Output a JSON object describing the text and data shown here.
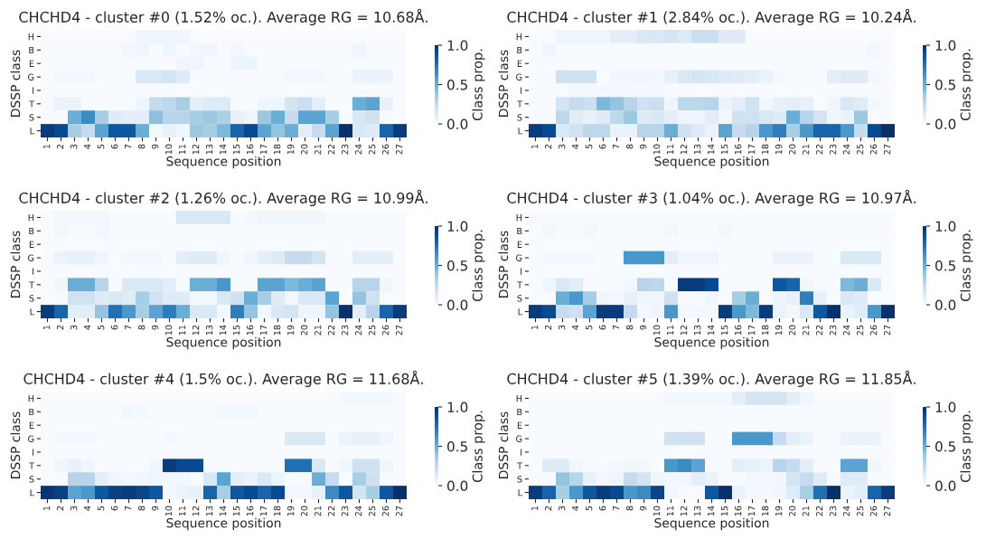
{
  "chart_data": [
    {
      "type": "heatmap",
      "title": "CHCHD4 - cluster #0 (1.52% oc.). Average RG = 10.68Å.",
      "xlabel": "Sequence position",
      "ylabel": "DSSP class",
      "clabel": "Class prop.",
      "categories": [
        "1",
        "2",
        "3",
        "4",
        "5",
        "6",
        "7",
        "8",
        "9",
        "10",
        "11",
        "12",
        "13",
        "14",
        "15",
        "16",
        "17",
        "18",
        "19",
        "20",
        "21",
        "22",
        "23",
        "24",
        "25",
        "26",
        "27"
      ],
      "y_categories": [
        "H",
        "B",
        "E",
        "G",
        "I",
        "T",
        "S",
        "L"
      ],
      "clim": [
        0,
        1
      ],
      "cticks": [
        {
          "value": 0,
          "label": "0.0"
        },
        {
          "value": 0.5,
          "label": "0.5"
        },
        {
          "value": 1,
          "label": "1.0"
        }
      ],
      "cells": [
        [
          0,
          0,
          0,
          0,
          0,
          0,
          0,
          0.05,
          0.05,
          0.05,
          0.05,
          0,
          0,
          0,
          0,
          0,
          0,
          0,
          0,
          0,
          0,
          0,
          0,
          0,
          0,
          0,
          0
        ],
        [
          0,
          0,
          0,
          0,
          0,
          0,
          0.03,
          0.05,
          0,
          0.05,
          0,
          0.03,
          0.05,
          0,
          0.03,
          0,
          0,
          0,
          0,
          0,
          0,
          0,
          0,
          0.05,
          0,
          0,
          0
        ],
        [
          0,
          0,
          0,
          0,
          0,
          0,
          0,
          0,
          0,
          0,
          0.05,
          0.05,
          0,
          0,
          0.06,
          0.06,
          0,
          0,
          0,
          0,
          0,
          0,
          0,
          0,
          0,
          0,
          0
        ],
        [
          0,
          0.02,
          0.02,
          0.02,
          0,
          0,
          0,
          0.15,
          0.15,
          0.18,
          0.12,
          0,
          0,
          0,
          0,
          0,
          0,
          0,
          0.03,
          0.03,
          0.03,
          0,
          0,
          0.07,
          0.07,
          0.07,
          0
        ],
        [
          0,
          0,
          0,
          0,
          0,
          0,
          0,
          0,
          0,
          0,
          0,
          0,
          0,
          0,
          0,
          0,
          0,
          0,
          0,
          0,
          0,
          0,
          0,
          0,
          0,
          0,
          0
        ],
        [
          0,
          0.07,
          0.07,
          0,
          0,
          0,
          0,
          0.05,
          0.25,
          0.28,
          0.35,
          0.1,
          0.13,
          0.13,
          0,
          0,
          0.05,
          0.05,
          0.18,
          0.22,
          0.1,
          0,
          0,
          0.5,
          0.55,
          0.08,
          0
        ],
        [
          0,
          0,
          0.5,
          0.65,
          0.35,
          0.12,
          0.1,
          0.1,
          0.42,
          0.3,
          0.3,
          0.35,
          0.38,
          0.33,
          0.08,
          0.05,
          0.38,
          0.5,
          0.25,
          0.55,
          0.55,
          0.35,
          0,
          0.15,
          0.2,
          0,
          0
        ],
        [
          0.95,
          0.9,
          0.35,
          0.25,
          0.55,
          0.85,
          0.85,
          0.5,
          0.03,
          0.08,
          0.05,
          0.38,
          0.35,
          0.45,
          0.8,
          0.9,
          0.55,
          0.4,
          0.5,
          0.1,
          0.25,
          0.55,
          1.0,
          0.15,
          0.12,
          0.8,
          0.95
        ]
      ]
    },
    {
      "type": "heatmap",
      "title": "CHCHD4 - cluster #1 (2.84% oc.). Average RG = 10.24Å.",
      "xlabel": "Sequence position",
      "ylabel": "DSSP class",
      "clabel": "Class prop.",
      "categories": [
        "1",
        "2",
        "3",
        "4",
        "5",
        "6",
        "7",
        "8",
        "9",
        "10",
        "11",
        "12",
        "13",
        "14",
        "15",
        "16",
        "17",
        "18",
        "19",
        "20",
        "21",
        "22",
        "23",
        "24",
        "25",
        "26",
        "27"
      ],
      "y_categories": [
        "H",
        "B",
        "E",
        "G",
        "I",
        "T",
        "S",
        "L"
      ],
      "clim": [
        0,
        1
      ],
      "cticks": [
        {
          "value": 0,
          "label": "0.0"
        },
        {
          "value": 0.5,
          "label": "0.5"
        },
        {
          "value": 1,
          "label": "1.0"
        }
      ],
      "cells": [
        [
          0,
          0,
          0.05,
          0.05,
          0.05,
          0.05,
          0.1,
          0.1,
          0.15,
          0.15,
          0.18,
          0.13,
          0.22,
          0.22,
          0.12,
          0.12,
          0,
          0,
          0,
          0,
          0,
          0,
          0,
          0,
          0,
          0,
          0
        ],
        [
          0,
          0.05,
          0,
          0,
          0,
          0,
          0,
          0,
          0,
          0,
          0,
          0,
          0,
          0,
          0,
          0,
          0,
          0,
          0,
          0,
          0,
          0,
          0,
          0,
          0,
          0.03,
          0
        ],
        [
          0,
          0,
          0,
          0,
          0,
          0,
          0,
          0,
          0,
          0,
          0,
          0,
          0,
          0,
          0,
          0,
          0,
          0,
          0,
          0,
          0,
          0,
          0,
          0,
          0,
          0,
          0
        ],
        [
          0,
          0,
          0.2,
          0.2,
          0.2,
          0,
          0.04,
          0.04,
          0.05,
          0.03,
          0.08,
          0.15,
          0.17,
          0.15,
          0.13,
          0.12,
          0.1,
          0.07,
          0.02,
          0,
          0,
          0,
          0.1,
          0.12,
          0.12,
          0.03,
          0
        ],
        [
          0,
          0,
          0,
          0.02,
          0.02,
          0.02,
          0.02,
          0.02,
          0.02,
          0.02,
          0,
          0,
          0,
          0,
          0,
          0,
          0,
          0,
          0,
          0,
          0,
          0,
          0,
          0,
          0,
          0,
          0
        ],
        [
          0,
          0,
          0.18,
          0.25,
          0.22,
          0.45,
          0.4,
          0.3,
          0.2,
          0.22,
          0.05,
          0.28,
          0.28,
          0.3,
          0.06,
          0.1,
          0.2,
          0.03,
          0.08,
          0.1,
          0.08,
          0,
          0.05,
          0.15,
          0.12,
          0.03,
          0
        ],
        [
          0,
          0,
          0.28,
          0.12,
          0.08,
          0.12,
          0.28,
          0.38,
          0.12,
          0.15,
          0.1,
          0.05,
          0.05,
          0.1,
          0.03,
          0.2,
          0.2,
          0.15,
          0.12,
          0.5,
          0.3,
          0.18,
          0.04,
          0.07,
          0.38,
          0,
          0
        ],
        [
          0.95,
          0.9,
          0.15,
          0.2,
          0.28,
          0.28,
          0.07,
          0.07,
          0.3,
          0.3,
          0.5,
          0.2,
          0.13,
          0.07,
          0.55,
          0.25,
          0.3,
          0.6,
          0.7,
          0.35,
          0.6,
          0.8,
          0.8,
          0.6,
          0.25,
          0.9,
          1.0
        ]
      ]
    },
    {
      "type": "heatmap",
      "title": "CHCHD4 - cluster #2 (1.26% oc.). Average RG = 10.99Å.",
      "xlabel": "Sequence position",
      "ylabel": "DSSP class",
      "clabel": "Class prop.",
      "categories": [
        "1",
        "2",
        "3",
        "4",
        "5",
        "6",
        "7",
        "8",
        "9",
        "10",
        "11",
        "12",
        "13",
        "14",
        "15",
        "16",
        "17",
        "18",
        "19",
        "20",
        "21",
        "22",
        "23",
        "24",
        "25",
        "26",
        "27"
      ],
      "y_categories": [
        "H",
        "B",
        "E",
        "G",
        "I",
        "T",
        "S",
        "L"
      ],
      "clim": [
        0,
        1
      ],
      "cticks": [
        {
          "value": 0,
          "label": "0.0"
        },
        {
          "value": 0.5,
          "label": "0.5"
        },
        {
          "value": 1,
          "label": "1.0"
        }
      ],
      "cells": [
        [
          0,
          0.03,
          0.03,
          0.03,
          0.03,
          0,
          0,
          0,
          0,
          0,
          0.15,
          0.15,
          0.15,
          0.15,
          0,
          0.02,
          0.04,
          0.04,
          0.04,
          0.04,
          0.04,
          0,
          0,
          0,
          0,
          0,
          0
        ],
        [
          0,
          0.03,
          0,
          0,
          0.03,
          0,
          0,
          0,
          0,
          0,
          0,
          0,
          0,
          0,
          0,
          0,
          0,
          0,
          0,
          0,
          0,
          0,
          0,
          0,
          0,
          0,
          0
        ],
        [
          0,
          0,
          0,
          0,
          0,
          0,
          0,
          0,
          0,
          0,
          0,
          0,
          0,
          0,
          0,
          0,
          0,
          0,
          0,
          0,
          0,
          0,
          0,
          0,
          0,
          0,
          0
        ],
        [
          0,
          0.07,
          0.08,
          0.08,
          0.05,
          0,
          0.02,
          0.03,
          0.03,
          0,
          0.1,
          0.12,
          0.12,
          0.04,
          0,
          0.04,
          0.1,
          0.12,
          0.25,
          0.25,
          0.18,
          0,
          0,
          0.1,
          0.1,
          0.1,
          0
        ],
        [
          0,
          0,
          0,
          0,
          0,
          0,
          0,
          0,
          0,
          0,
          0,
          0,
          0,
          0,
          0,
          0,
          0,
          0,
          0,
          0,
          0,
          0,
          0,
          0,
          0,
          0,
          0
        ],
        [
          0,
          0.04,
          0.5,
          0.5,
          0.3,
          0,
          0.15,
          0.15,
          0.15,
          0.1,
          0,
          0.5,
          0.5,
          0.6,
          0,
          0,
          0.55,
          0.55,
          0.45,
          0.5,
          0.55,
          0,
          0,
          0.3,
          0.3,
          0.04,
          0
        ],
        [
          0,
          0,
          0.2,
          0.2,
          0.12,
          0.15,
          0.12,
          0.35,
          0.2,
          0.12,
          0.12,
          0.02,
          0.03,
          0.15,
          0.2,
          0.5,
          0.35,
          0.12,
          0.03,
          0.15,
          0.15,
          0.55,
          0,
          0.4,
          0.2,
          0,
          0
        ],
        [
          0.95,
          0.8,
          0.1,
          0.1,
          0.4,
          0.75,
          0.6,
          0.35,
          0.55,
          0.7,
          0.5,
          0.15,
          0.15,
          0.02,
          0.7,
          0.4,
          0.02,
          0.15,
          0.18,
          0.05,
          0.05,
          0.4,
          1.0,
          0.1,
          0.3,
          0.8,
          0.95
        ]
      ]
    },
    {
      "type": "heatmap",
      "title": "CHCHD4 - cluster #3 (1.04% oc.). Average RG = 10.97Å.",
      "xlabel": "Sequence position",
      "ylabel": "DSSP class",
      "clabel": "Class prop.",
      "categories": [
        "1",
        "2",
        "3",
        "4",
        "5",
        "6",
        "7",
        "8",
        "9",
        "10",
        "11",
        "12",
        "13",
        "14",
        "15",
        "16",
        "17",
        "18",
        "19",
        "20",
        "21",
        "22",
        "23",
        "24",
        "25",
        "26",
        "27"
      ],
      "y_categories": [
        "H",
        "B",
        "E",
        "G",
        "I",
        "T",
        "S",
        "L"
      ],
      "clim": [
        0,
        1
      ],
      "cticks": [
        {
          "value": 0,
          "label": "0.0"
        },
        {
          "value": 0.5,
          "label": "0.5"
        },
        {
          "value": 1,
          "label": "1.0"
        }
      ],
      "cells": [
        [
          0,
          0,
          0,
          0,
          0,
          0,
          0,
          0,
          0,
          0,
          0,
          0,
          0,
          0,
          0,
          0,
          0,
          0,
          0,
          0,
          0,
          0,
          0,
          0,
          0,
          0,
          0
        ],
        [
          0,
          0.03,
          0,
          0,
          0.03,
          0,
          0,
          0,
          0,
          0,
          0.03,
          0,
          0,
          0,
          0.03,
          0,
          0,
          0,
          0,
          0,
          0,
          0,
          0,
          0,
          0,
          0,
          0
        ],
        [
          0,
          0,
          0,
          0,
          0,
          0,
          0,
          0,
          0,
          0,
          0,
          0,
          0,
          0,
          0,
          0,
          0,
          0,
          0,
          0,
          0,
          0,
          0,
          0,
          0,
          0,
          0
        ],
        [
          0,
          0.02,
          0.02,
          0.02,
          0.02,
          0,
          0,
          0.6,
          0.6,
          0.6,
          0.1,
          0.05,
          0.05,
          0.05,
          0,
          0,
          0,
          0,
          0.07,
          0.07,
          0.07,
          0,
          0,
          0.15,
          0.15,
          0.15,
          0
        ],
        [
          0,
          0,
          0,
          0,
          0,
          0,
          0,
          0,
          0,
          0,
          0,
          0,
          0,
          0,
          0,
          0,
          0,
          0,
          0,
          0,
          0,
          0,
          0,
          0,
          0,
          0,
          0
        ],
        [
          0,
          0.05,
          0.15,
          0.1,
          0,
          0,
          0,
          0.03,
          0.3,
          0.28,
          0,
          0.95,
          0.95,
          0.9,
          0,
          0,
          0,
          0,
          0.85,
          0.8,
          0.03,
          0,
          0,
          0.45,
          0.5,
          0.15,
          0
        ],
        [
          0,
          0,
          0.5,
          0.6,
          0.35,
          0.04,
          0.02,
          0.08,
          0.05,
          0.05,
          0.2,
          0,
          0,
          0.04,
          0,
          0.35,
          0.5,
          0,
          0.05,
          0.08,
          0.7,
          0.08,
          0,
          0.15,
          0.12,
          0,
          0
        ],
        [
          0.95,
          0.9,
          0.25,
          0.2,
          0.55,
          0.95,
          0.95,
          0.25,
          0.02,
          0.05,
          0.6,
          0.02,
          0.02,
          0.02,
          0.95,
          0.6,
          0.45,
          0.95,
          0.07,
          0.03,
          0.15,
          0.85,
          1.0,
          0.07,
          0.12,
          0.6,
          1.0
        ]
      ]
    },
    {
      "type": "heatmap",
      "title": "CHCHD4 - cluster #4 (1.5% oc.). Average RG = 11.68Å.",
      "xlabel": "Sequence position",
      "ylabel": "DSSP class",
      "clabel": "Class prop.",
      "categories": [
        "1",
        "2",
        "3",
        "4",
        "5",
        "6",
        "7",
        "8",
        "9",
        "10",
        "11",
        "12",
        "13",
        "14",
        "15",
        "16",
        "17",
        "18",
        "19",
        "20",
        "21",
        "22",
        "23",
        "24",
        "25",
        "26",
        "27"
      ],
      "y_categories": [
        "H",
        "B",
        "E",
        "G",
        "I",
        "T",
        "S",
        "L"
      ],
      "clim": [
        0,
        1
      ],
      "cticks": [
        {
          "value": 0,
          "label": "0.0"
        },
        {
          "value": 0.5,
          "label": "0.5"
        },
        {
          "value": 1,
          "label": "1.0"
        }
      ],
      "cells": [
        [
          0,
          0,
          0,
          0,
          0,
          0,
          0,
          0,
          0,
          0,
          0,
          0,
          0,
          0,
          0,
          0,
          0,
          0,
          0,
          0,
          0,
          0,
          0.02,
          0.02,
          0.02,
          0.02,
          0
        ],
        [
          0,
          0,
          0,
          0,
          0,
          0,
          0.03,
          0.02,
          0,
          0,
          0,
          0,
          0,
          0.03,
          0.03,
          0.03,
          0,
          0,
          0,
          0,
          0,
          0,
          0,
          0,
          0,
          0,
          0
        ],
        [
          0,
          0,
          0,
          0,
          0,
          0,
          0,
          0,
          0,
          0,
          0,
          0,
          0,
          0,
          0,
          0,
          0,
          0,
          0,
          0,
          0,
          0,
          0,
          0,
          0,
          0,
          0
        ],
        [
          0,
          0.02,
          0.02,
          0.02,
          0,
          0,
          0,
          0,
          0,
          0.02,
          0,
          0,
          0,
          0,
          0,
          0,
          0,
          0,
          0.15,
          0.15,
          0.15,
          0,
          0.06,
          0.08,
          0.08,
          0.05,
          0
        ],
        [
          0,
          0,
          0,
          0,
          0,
          0,
          0,
          0,
          0,
          0,
          0,
          0,
          0,
          0,
          0,
          0,
          0,
          0,
          0,
          0,
          0,
          0,
          0,
          0,
          0,
          0,
          0
        ],
        [
          0,
          0.05,
          0.08,
          0.04,
          0,
          0,
          0,
          0,
          0.04,
          0.95,
          0.9,
          0.9,
          0,
          0,
          0,
          0,
          0,
          0,
          0.75,
          0.75,
          0.15,
          0,
          0.04,
          0.2,
          0.2,
          0.05,
          0
        ],
        [
          0,
          0,
          0.3,
          0.3,
          0.1,
          0.05,
          0.02,
          0.04,
          0.05,
          0.03,
          0.03,
          0,
          0.15,
          0.55,
          0.1,
          0.07,
          0.15,
          0.06,
          0,
          0,
          0.5,
          0.25,
          0,
          0.35,
          0.2,
          0,
          0
        ],
        [
          0.98,
          0.93,
          0.55,
          0.6,
          0.85,
          0.93,
          0.95,
          0.92,
          0.85,
          0.02,
          0.06,
          0.08,
          0.8,
          0.35,
          0.85,
          0.9,
          0.8,
          0.9,
          0.02,
          0.02,
          0.08,
          0.65,
          0.85,
          0.18,
          0.35,
          0.85,
          1.0
        ]
      ]
    },
    {
      "type": "heatmap",
      "title": "CHCHD4 - cluster #5 (1.39% oc.). Average RG = 11.85Å.",
      "xlabel": "Sequence position",
      "ylabel": "DSSP class",
      "clabel": "Class prop.",
      "categories": [
        "1",
        "2",
        "3",
        "4",
        "5",
        "6",
        "7",
        "8",
        "9",
        "10",
        "11",
        "12",
        "13",
        "14",
        "15",
        "16",
        "17",
        "18",
        "19",
        "20",
        "21",
        "22",
        "23",
        "24",
        "25",
        "26",
        "27"
      ],
      "y_categories": [
        "H",
        "B",
        "E",
        "G",
        "I",
        "T",
        "S",
        "L"
      ],
      "clim": [
        0,
        1
      ],
      "cticks": [
        {
          "value": 0,
          "label": "0.0"
        },
        {
          "value": 0.5,
          "label": "0.5"
        },
        {
          "value": 1,
          "label": "1.0"
        }
      ],
      "cells": [
        [
          0,
          0,
          0,
          0,
          0,
          0,
          0,
          0,
          0,
          0,
          0.02,
          0.02,
          0.02,
          0.02,
          0.02,
          0.1,
          0.18,
          0.18,
          0.18,
          0.1,
          0.04,
          0,
          0,
          0,
          0,
          0,
          0
        ],
        [
          0,
          0,
          0,
          0,
          0,
          0,
          0,
          0,
          0,
          0,
          0,
          0,
          0,
          0,
          0,
          0,
          0,
          0,
          0,
          0,
          0,
          0,
          0,
          0,
          0,
          0,
          0
        ],
        [
          0,
          0,
          0,
          0,
          0,
          0,
          0,
          0,
          0,
          0,
          0,
          0,
          0,
          0,
          0,
          0,
          0,
          0,
          0,
          0,
          0,
          0,
          0,
          0,
          0,
          0,
          0
        ],
        [
          0,
          0,
          0,
          0,
          0,
          0,
          0,
          0,
          0,
          0,
          0.2,
          0.2,
          0.2,
          0,
          0,
          0.6,
          0.6,
          0.6,
          0.25,
          0.1,
          0.07,
          0,
          0,
          0.07,
          0.07,
          0.07,
          0
        ],
        [
          0,
          0,
          0,
          0,
          0,
          0,
          0,
          0,
          0,
          0,
          0,
          0,
          0,
          0,
          0,
          0,
          0,
          0,
          0,
          0,
          0,
          0,
          0,
          0,
          0,
          0,
          0
        ],
        [
          0,
          0.12,
          0.12,
          0.03,
          0,
          0,
          0.02,
          0.04,
          0.03,
          0,
          0.6,
          0.65,
          0.55,
          0,
          0,
          0.1,
          0.08,
          0.06,
          0.3,
          0.25,
          0.1,
          0,
          0,
          0.55,
          0.55,
          0.04,
          0
        ],
        [
          0,
          0,
          0.4,
          0.3,
          0.08,
          0.03,
          0.05,
          0.25,
          0.18,
          0.04,
          0.02,
          0.03,
          0.1,
          0.07,
          0,
          0,
          0.03,
          0.03,
          0.03,
          0.18,
          0.25,
          0.12,
          0,
          0.12,
          0.12,
          0,
          0
        ],
        [
          0.95,
          0.8,
          0.35,
          0.6,
          0.85,
          0.95,
          0.9,
          0.6,
          0.65,
          0.92,
          0.03,
          0,
          0,
          0.85,
          1.0,
          0.07,
          0.02,
          0.02,
          0.04,
          0.12,
          0.35,
          0.75,
          1.0,
          0.07,
          0.1,
          0.8,
          0.95
        ]
      ]
    }
  ]
}
